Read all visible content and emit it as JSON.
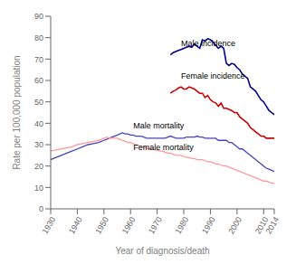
{
  "chart_data": {
    "type": "line",
    "xlabel": "Year of diagnosis/death",
    "ylabel": "Rate per 100,000 population",
    "xlim": [
      1930,
      2014
    ],
    "xticks": [
      1930,
      1940,
      1950,
      1960,
      1970,
      1980,
      1990,
      2000,
      2010,
      2014
    ],
    "ylim": [
      0,
      90
    ],
    "yticks": [
      0,
      10,
      20,
      30,
      40,
      50,
      60,
      70,
      80,
      90
    ],
    "grid": false,
    "series": [
      {
        "color": "#00008B",
        "x": [
          1975,
          1976,
          1977,
          1978,
          1979,
          1980,
          1981,
          1982,
          1983,
          1984,
          1985,
          1986,
          1987,
          1988,
          1989,
          1990,
          1991,
          1992,
          1993,
          1994,
          1995,
          1996,
          1997,
          1998,
          1999,
          2000,
          2001,
          2002,
          2003,
          2004,
          2005,
          2006,
          2007,
          2008,
          2009,
          2010,
          2011,
          2012,
          2013,
          2014
        ],
        "values": [
          72,
          73,
          73.5,
          74,
          74.5,
          75,
          75.5,
          76,
          75.5,
          77,
          76,
          75,
          79,
          78.5,
          79.5,
          79,
          78,
          76.5,
          75,
          76,
          75,
          68,
          67,
          68,
          67.5,
          66,
          65,
          63,
          62,
          61,
          57,
          56,
          55,
          53,
          51,
          50,
          48,
          46,
          45,
          44
        ]
      },
      {
        "color": "#CC0000",
        "x": [
          1975,
          1976,
          1977,
          1978,
          1979,
          1980,
          1981,
          1982,
          1983,
          1984,
          1985,
          1986,
          1987,
          1988,
          1989,
          1990,
          1991,
          1992,
          1993,
          1994,
          1995,
          1996,
          1997,
          1998,
          1999,
          2000,
          2001,
          2002,
          2003,
          2004,
          2005,
          2006,
          2007,
          2008,
          2009,
          2010,
          2011,
          2012,
          2013,
          2014
        ],
        "values": [
          54,
          55,
          55.5,
          56.5,
          57,
          56,
          56,
          57,
          56.5,
          56,
          55,
          54,
          54,
          52,
          53,
          51,
          50,
          49.5,
          48,
          49.5,
          47,
          47,
          46.5,
          46,
          45,
          45,
          43,
          42,
          41,
          40,
          38,
          37,
          36,
          35,
          34,
          34,
          33,
          33,
          33,
          33
        ]
      },
      {
        "color": "#4444BB",
        "x": [
          1930,
          1932,
          1934,
          1936,
          1938,
          1940,
          1942,
          1944,
          1946,
          1948,
          1950,
          1951,
          1952,
          1953,
          1954,
          1955,
          1956,
          1957,
          1958,
          1959,
          1960,
          1961,
          1962,
          1963,
          1964,
          1965,
          1966,
          1967,
          1968,
          1969,
          1970,
          1971,
          1972,
          1973,
          1974,
          1975,
          1976,
          1977,
          1978,
          1979,
          1980,
          1981,
          1982,
          1983,
          1984,
          1985,
          1986,
          1987,
          1988,
          1989,
          1990,
          1991,
          1992,
          1993,
          1994,
          1995,
          1996,
          1997,
          1998,
          1999,
          2000,
          2001,
          2002,
          2003,
          2004,
          2005,
          2006,
          2007,
          2008,
          2009,
          2010,
          2011,
          2012,
          2013,
          2014
        ],
        "values": [
          23,
          24,
          25,
          26,
          27,
          28,
          29,
          30,
          30.5,
          31,
          32,
          32.5,
          33,
          33.5,
          34,
          34.5,
          35,
          35.5,
          35,
          35,
          34.5,
          34.5,
          34,
          34,
          34,
          33.5,
          33,
          33,
          33,
          33,
          33,
          33,
          33,
          33,
          33.5,
          34,
          33.5,
          33,
          33,
          33,
          33,
          33.5,
          33.5,
          33.5,
          33.5,
          34,
          33.5,
          33.5,
          33,
          33,
          33,
          33,
          33,
          32,
          32,
          32,
          32,
          31,
          31,
          30,
          29,
          28,
          28,
          27,
          26,
          25,
          24,
          23,
          22,
          21,
          20,
          19,
          18.5,
          18,
          17.5
        ]
      },
      {
        "color": "#FF9999",
        "x": [
          1930,
          1932,
          1934,
          1936,
          1938,
          1940,
          1942,
          1944,
          1946,
          1948,
          1950,
          1951,
          1952,
          1953,
          1954,
          1955,
          1956,
          1957,
          1958,
          1959,
          1960,
          1961,
          1962,
          1963,
          1964,
          1965,
          1966,
          1967,
          1968,
          1969,
          1970,
          1971,
          1972,
          1973,
          1974,
          1975,
          1976,
          1977,
          1978,
          1979,
          1980,
          1981,
          1982,
          1983,
          1984,
          1985,
          1986,
          1987,
          1988,
          1989,
          1990,
          1991,
          1992,
          1993,
          1994,
          1995,
          1996,
          1997,
          1998,
          1999,
          2000,
          2001,
          2002,
          2003,
          2004,
          2005,
          2006,
          2007,
          2008,
          2009,
          2010,
          2011,
          2012,
          2013,
          2014
        ],
        "values": [
          27,
          27.5,
          28,
          28.5,
          29,
          30,
          30.5,
          31,
          31.5,
          32,
          33,
          33.5,
          33,
          33,
          33,
          33,
          32.5,
          32,
          31.5,
          31,
          31,
          30.5,
          30,
          29.5,
          29,
          29,
          28.5,
          28,
          28,
          27.5,
          27.5,
          27,
          27,
          26.5,
          26,
          26,
          25.5,
          25,
          25,
          25,
          24.5,
          24,
          24,
          23.5,
          23.5,
          23,
          23,
          23,
          22.5,
          22,
          22,
          21.5,
          21,
          21,
          20.5,
          20,
          20,
          19.5,
          19,
          18.5,
          18,
          17.5,
          17,
          16.5,
          16,
          15.5,
          15,
          14.5,
          14,
          13.5,
          13,
          13,
          12.5,
          12,
          12
        ]
      }
    ],
    "annotations": [
      {
        "text": "Male incidence",
        "x": 1979,
        "y": 76
      },
      {
        "text": "Female incidence",
        "x": 1979,
        "y": 61
      },
      {
        "text": "Male mortality",
        "x": 1961,
        "y": 37.5
      },
      {
        "text": "Female mortality",
        "x": 1961,
        "y": 27.5
      }
    ]
  }
}
